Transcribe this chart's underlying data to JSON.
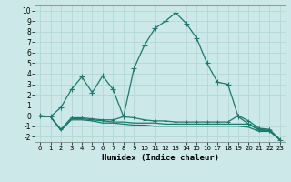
{
  "x": [
    0,
    1,
    2,
    3,
    4,
    5,
    6,
    7,
    8,
    9,
    10,
    11,
    12,
    13,
    14,
    15,
    16,
    17,
    18,
    19,
    20,
    21,
    22,
    23
  ],
  "line1": [
    0.0,
    -0.1,
    0.8,
    2.5,
    3.7,
    2.2,
    3.8,
    2.5,
    -0.1,
    4.5,
    6.7,
    8.3,
    9.0,
    9.8,
    8.8,
    7.4,
    5.0,
    3.2,
    3.0,
    -0.1,
    -0.8,
    -1.3,
    -1.4,
    -2.3
  ],
  "line2": [
    0.0,
    -0.1,
    -1.3,
    -0.2,
    -0.2,
    -0.3,
    -0.4,
    -0.4,
    -0.1,
    -0.2,
    -0.4,
    -0.5,
    -0.5,
    -0.6,
    -0.6,
    -0.6,
    -0.6,
    -0.6,
    -0.6,
    0.0,
    -0.5,
    -1.2,
    -1.3,
    -2.3
  ],
  "line3": [
    -0.1,
    -0.1,
    -1.4,
    -0.3,
    -0.3,
    -0.4,
    -0.5,
    -0.6,
    -0.6,
    -0.7,
    -0.7,
    -0.7,
    -0.8,
    -0.8,
    -0.8,
    -0.8,
    -0.8,
    -0.8,
    -0.8,
    -0.8,
    -0.8,
    -1.4,
    -1.4,
    -2.3
  ],
  "line4": [
    -0.1,
    -0.1,
    -1.4,
    -0.4,
    -0.4,
    -0.5,
    -0.7,
    -0.7,
    -0.8,
    -0.9,
    -0.9,
    -1.0,
    -1.0,
    -1.0,
    -1.0,
    -1.0,
    -1.0,
    -1.0,
    -1.0,
    -1.0,
    -1.1,
    -1.5,
    -1.5,
    -2.3
  ],
  "bg_color": "#cce8e8",
  "line_color": "#1a7a6e",
  "grid_color": "#b0d8d8",
  "xlabel": "Humidex (Indice chaleur)",
  "xlim": [
    -0.5,
    23.5
  ],
  "ylim": [
    -2.5,
    10.5
  ],
  "yticks": [
    -2,
    -1,
    0,
    1,
    2,
    3,
    4,
    5,
    6,
    7,
    8,
    9,
    10
  ],
  "xticks": [
    0,
    1,
    2,
    3,
    4,
    5,
    6,
    7,
    8,
    9,
    10,
    11,
    12,
    13,
    14,
    15,
    16,
    17,
    18,
    19,
    20,
    21,
    22,
    23
  ]
}
